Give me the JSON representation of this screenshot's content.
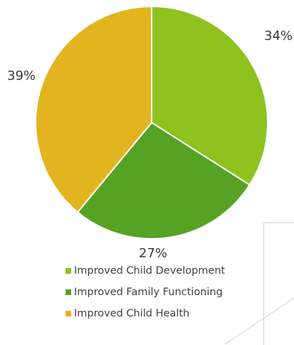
{
  "chart_data": {
    "type": "pie",
    "title": "",
    "slices": [
      {
        "label": "Improved Child Development",
        "value": 34,
        "display": "34%",
        "color": "#8dc21f"
      },
      {
        "label": "Improved Family Functioning",
        "value": 27,
        "display": "27%",
        "color": "#56a224"
      },
      {
        "label": "Improved Child Health",
        "value": 39,
        "display": "39%",
        "color": "#e2b420"
      }
    ],
    "start_angle_deg": 0,
    "direction": "clockwise",
    "legend_placement": "bottom"
  }
}
